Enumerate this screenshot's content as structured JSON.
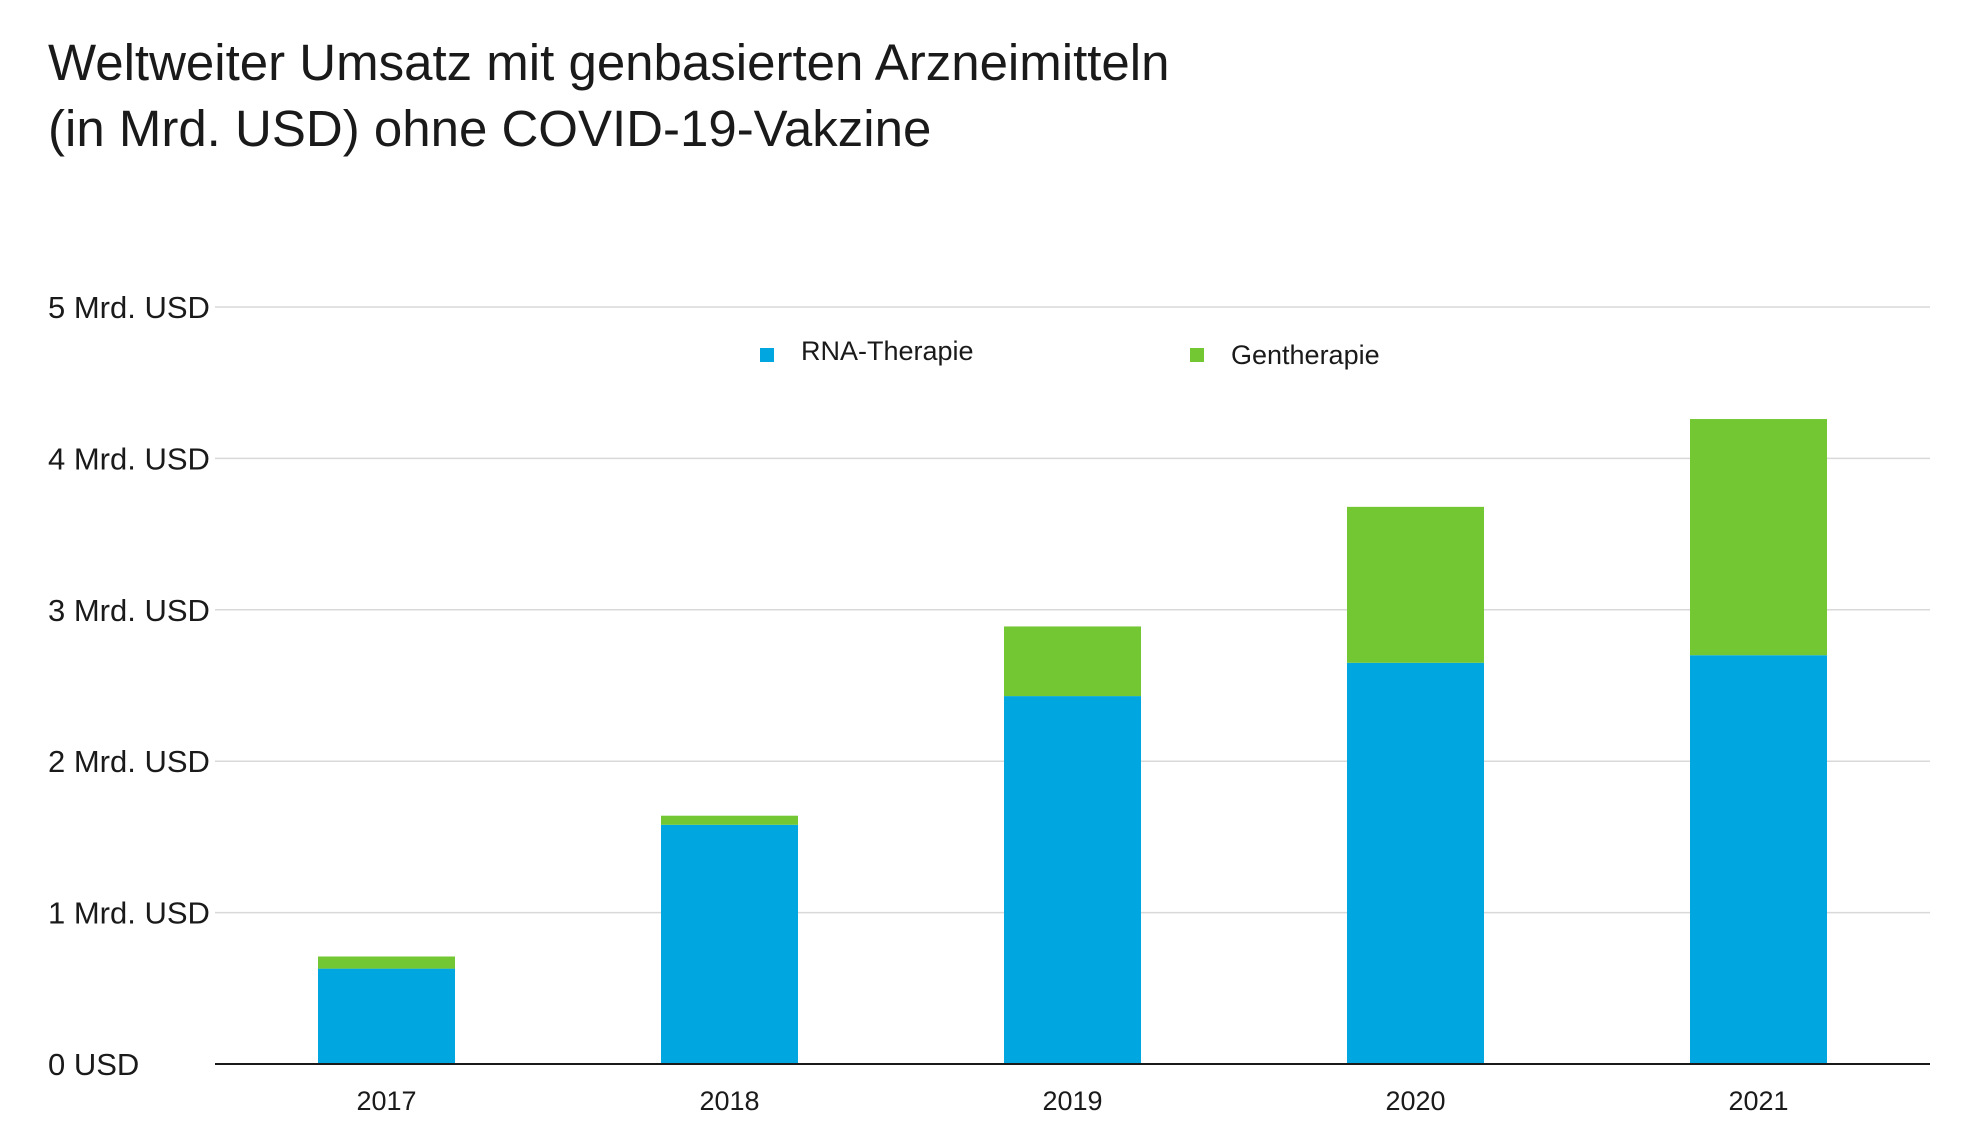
{
  "title": {
    "line1": "Weltweiter Umsatz mit genbasierten Arzneimitteln",
    "line2": "(in Mrd. USD) ohne COVID-19-Vakzine"
  },
  "chart_data": {
    "type": "bar",
    "stacked": true,
    "title": "Weltweiter Umsatz mit genbasierten Arzneimitteln (in Mrd. USD) ohne COVID-19-Vakzine",
    "categories": [
      "2017",
      "2018",
      "2019",
      "2020",
      "2021"
    ],
    "series": [
      {
        "name": "RNA-Therapie",
        "color": "#00a6df",
        "values": [
          0.63,
          1.58,
          2.43,
          2.65,
          2.7
        ]
      },
      {
        "name": "Gentherapie",
        "color": "#72c732",
        "values": [
          0.08,
          0.06,
          0.46,
          1.03,
          1.56
        ]
      }
    ],
    "ylim": [
      0,
      5
    ],
    "y_ticks": [
      {
        "value": 0,
        "label": "0 USD"
      },
      {
        "value": 1,
        "label": "1 Mrd. USD"
      },
      {
        "value": 2,
        "label": "2 Mrd. USD"
      },
      {
        "value": 3,
        "label": "3 Mrd. USD"
      },
      {
        "value": 4,
        "label": "4 Mrd. USD"
      },
      {
        "value": 5,
        "label": "5 Mrd. USD"
      }
    ],
    "xlabel": "",
    "ylabel": "",
    "grid": true,
    "legend": "top-center",
    "gridline_color": "#d9d9d9",
    "axis_color": "#1a1a1a"
  }
}
